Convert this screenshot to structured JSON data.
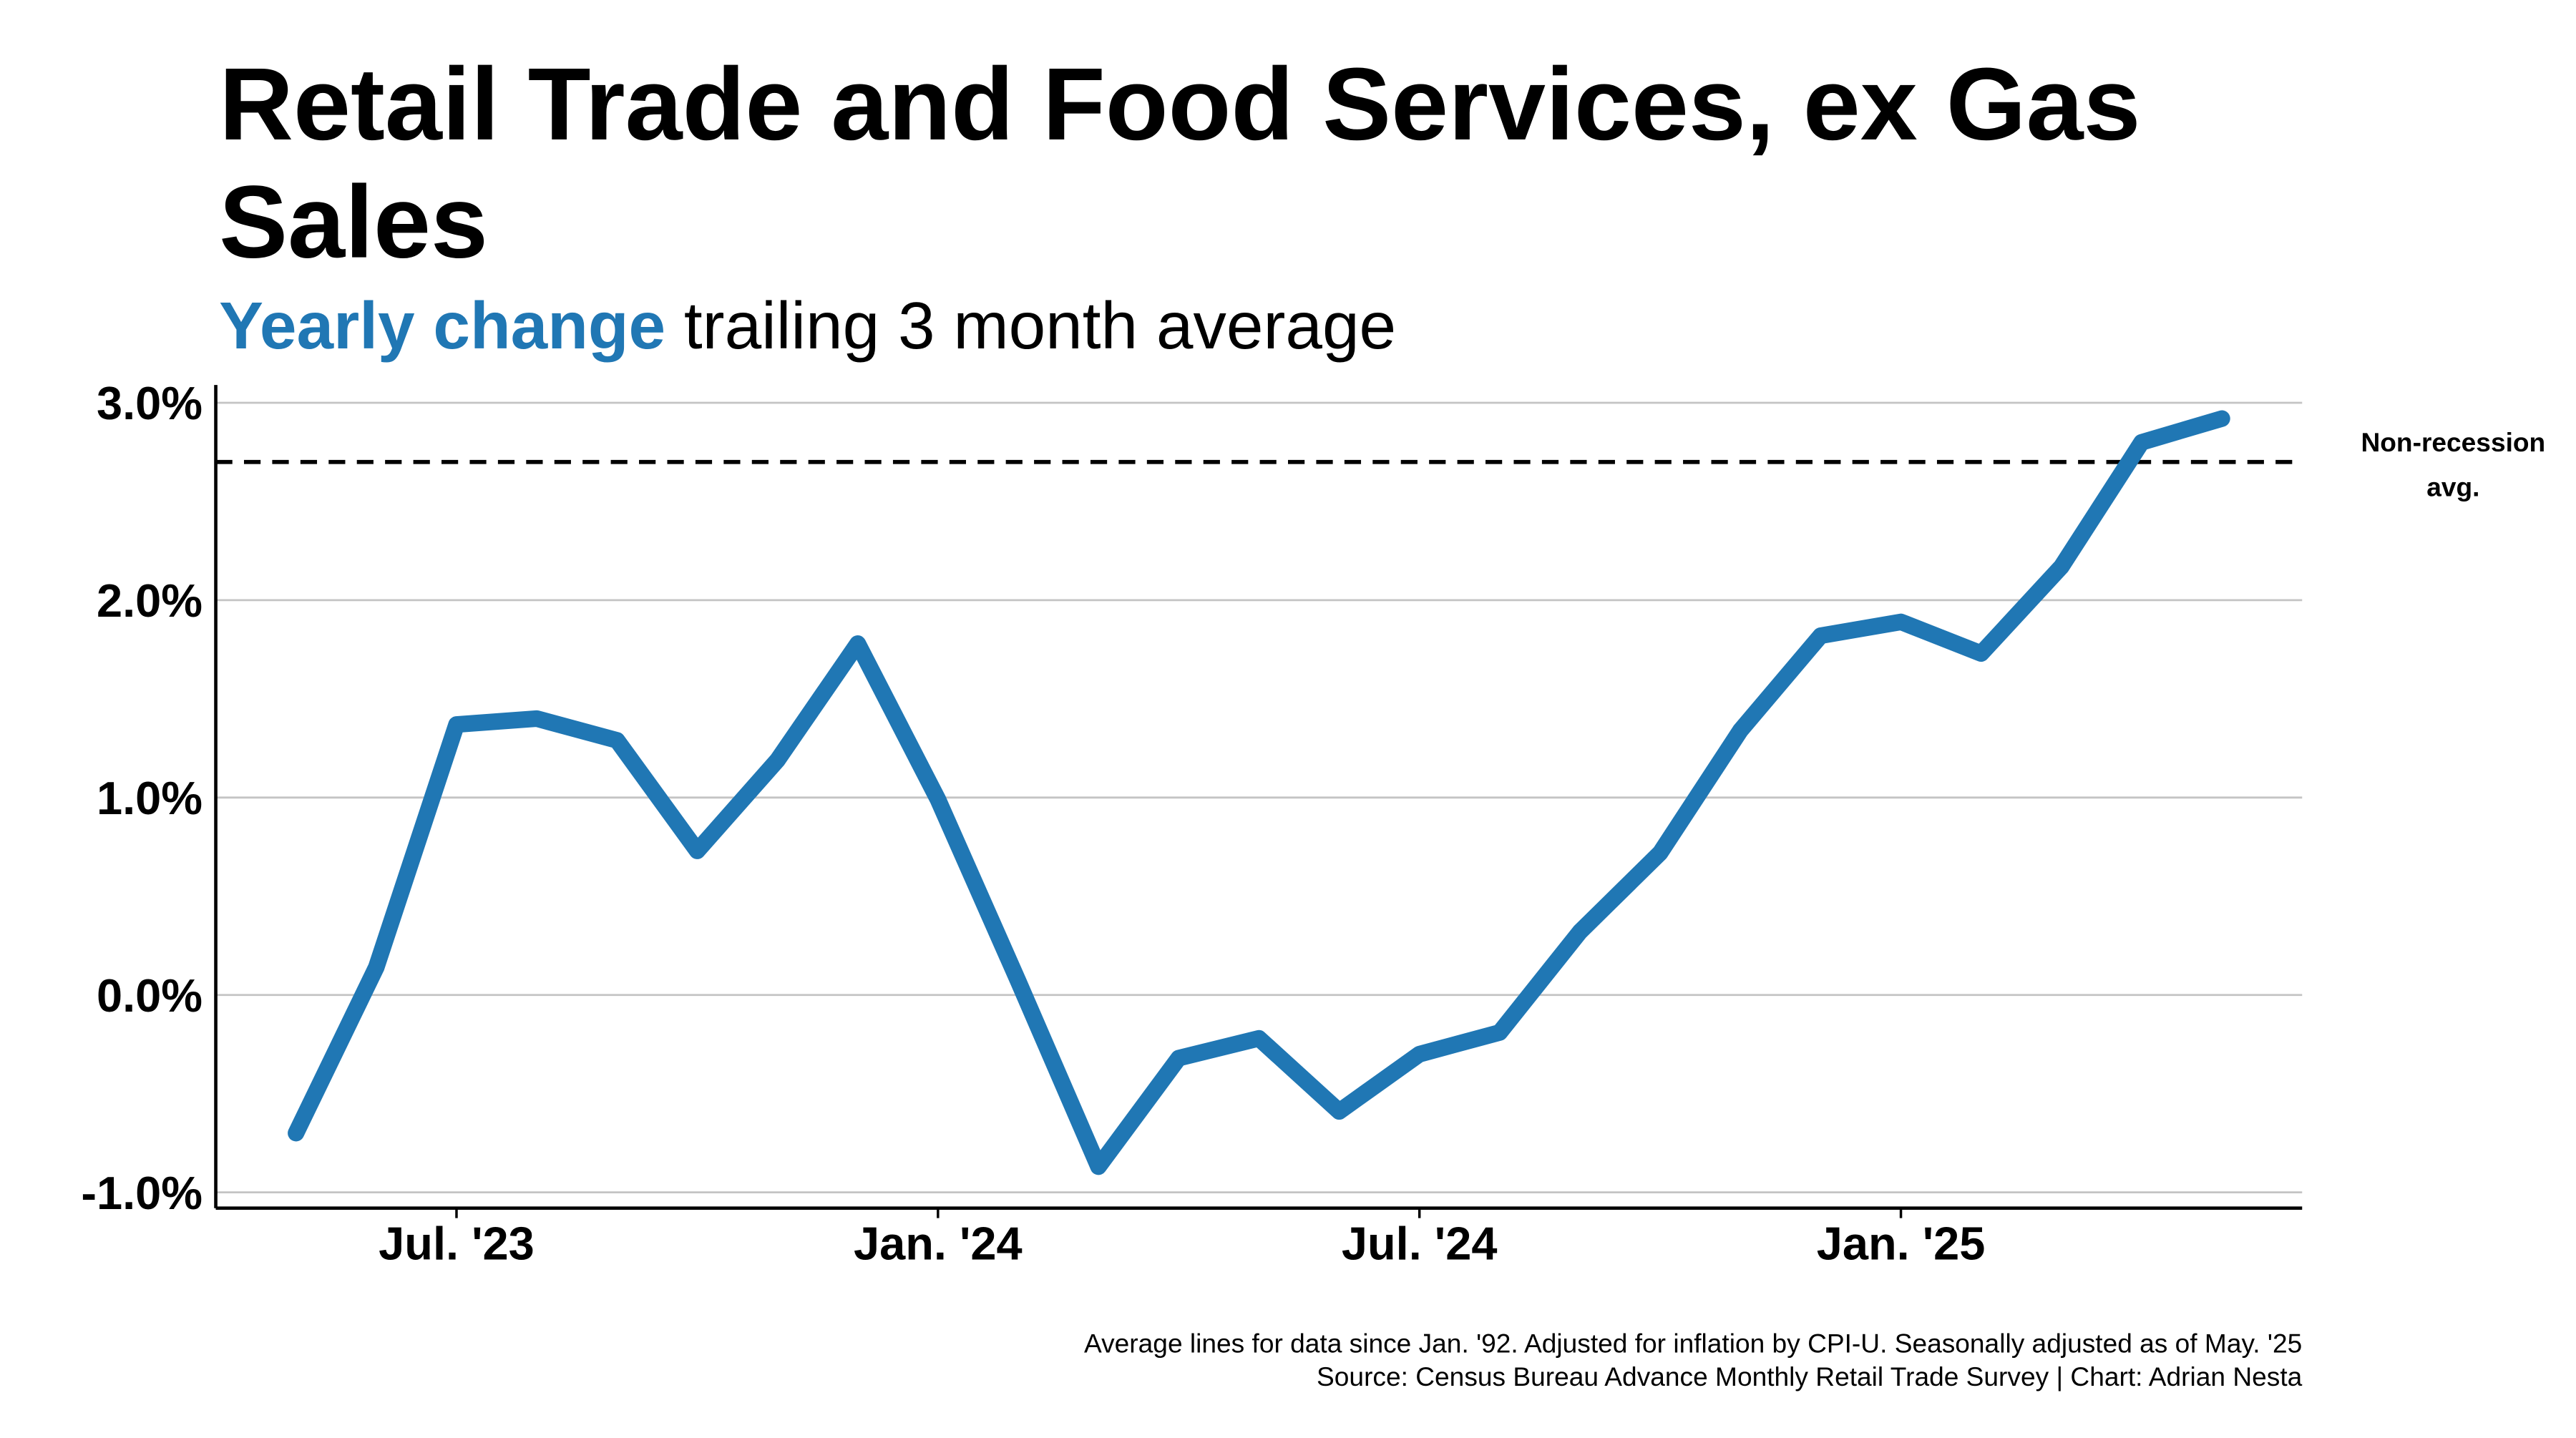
{
  "chart_data": {
    "type": "line",
    "title": [
      "Retail Trade and Food Services, ex Gas",
      "Sales"
    ],
    "subtitle_highlight": "Yearly change",
    "subtitle": "trailing 3 month average",
    "x": [
      "2023-05",
      "2023-06",
      "2023-07",
      "2023-08",
      "2023-09",
      "2023-10",
      "2023-11",
      "2023-12",
      "2024-01",
      "2024-02",
      "2024-03",
      "2024-04",
      "2024-05",
      "2024-06",
      "2024-07",
      "2024-08",
      "2024-09",
      "2024-10",
      "2024-11",
      "2024-12",
      "2025-01",
      "2025-02",
      "2025-03",
      "2025-04",
      "2025-05"
    ],
    "series": [
      {
        "name": "Yearly change",
        "color": "#2077b4",
        "values": [
          -0.7,
          0.14,
          1.37,
          1.4,
          1.29,
          0.73,
          1.19,
          1.78,
          0.99,
          0.07,
          -0.87,
          -0.32,
          -0.22,
          -0.59,
          -0.3,
          -0.19,
          0.32,
          0.72,
          1.34,
          1.82,
          1.89,
          1.73,
          2.17,
          2.8,
          2.92
        ]
      }
    ],
    "xlim": [
      "2023-04",
      "2025-06"
    ],
    "xticks": [
      {
        "value": "2023-07",
        "label": "Jul. '23"
      },
      {
        "value": "2024-01",
        "label": "Jan. '24"
      },
      {
        "value": "2024-07",
        "label": "Jul. '24"
      },
      {
        "value": "2025-01",
        "label": "Jan. '25"
      }
    ],
    "ylim": [
      -1.08,
      3.09
    ],
    "yticks": [
      {
        "value": -1,
        "label": "-1.0%"
      },
      {
        "value": 0,
        "label": "0.0%"
      },
      {
        "value": 1,
        "label": "1.0%"
      },
      {
        "value": 2,
        "label": "2.0%"
      },
      {
        "value": 3,
        "label": "3.0%"
      }
    ],
    "grid": true,
    "reference_line": {
      "value": 2.7,
      "label": [
        "Non-recession",
        "avg."
      ]
    },
    "notes": [
      "Average lines for data since Jan. '92. Adjusted for inflation by CPI-U. Seasonally adjusted as of May. '25",
      "Source: Census Bureau Advance Monthly Retail Trade Survey | Chart: Adrian Nesta"
    ]
  }
}
